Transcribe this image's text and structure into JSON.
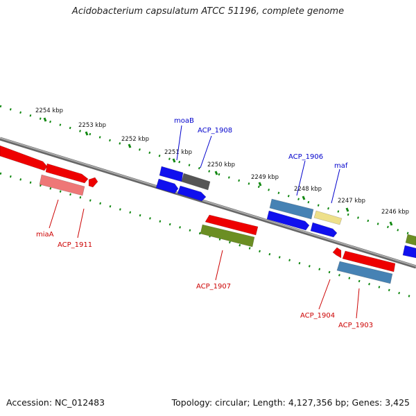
{
  "title": "Acidobacterium capsulatum ATCC 51196, complete genome",
  "footer": {
    "accession": "Accession: NC_012483",
    "topology": "Topology: circular; Length: 4,127,356 bp; Genes: 3,425"
  },
  "ticks": [
    {
      "label": "2254 kbp"
    },
    {
      "label": "2253 kbp"
    },
    {
      "label": "2252 kbp"
    },
    {
      "label": "2251 kbp"
    },
    {
      "label": "2250 kbp"
    },
    {
      "label": "2249 kbp"
    },
    {
      "label": "2248 kbp"
    },
    {
      "label": "2247 kbp"
    },
    {
      "label": "2246 kbp"
    }
  ],
  "genes": [
    {
      "id": "g-left-1",
      "label": "",
      "strand": "forward",
      "color": "#ee0000"
    },
    {
      "id": "g-left-2",
      "label": "",
      "strand": "forward",
      "color": "#ee0000"
    },
    {
      "id": "g-left-3",
      "label": "",
      "strand": "forward",
      "color": "#ee0000"
    },
    {
      "id": "g-miaA",
      "label": "miaA",
      "strand": "reverse",
      "color": "#ee7777"
    },
    {
      "id": "g-ACP_1911",
      "label": "ACP_1911",
      "strand": "reverse",
      "color": "#ee7777"
    },
    {
      "id": "g-moaB",
      "label": "moaB",
      "strand": "forward",
      "color": "#1010ee"
    },
    {
      "id": "g-ACP_1908",
      "label": "ACP_1908",
      "strand": "forward",
      "color": "#555555"
    },
    {
      "id": "g-blue-2",
      "label": "",
      "strand": "forward",
      "color": "#1010ee"
    },
    {
      "id": "g-blue-3",
      "label": "",
      "strand": "forward",
      "color": "#1010ee"
    },
    {
      "id": "g-ACP_1907",
      "label": "ACP_1907",
      "strand": "reverse",
      "color": "#ee0000"
    },
    {
      "id": "g-ACP_1907b",
      "label": "",
      "strand": "reverse",
      "color": "#6b8e23"
    },
    {
      "id": "g-ACP_1906",
      "label": "ACP_1906",
      "strand": "forward",
      "color": "#4682b4"
    },
    {
      "id": "g-blue-4",
      "label": "",
      "strand": "forward",
      "color": "#1010ee"
    },
    {
      "id": "g-maf",
      "label": "maf",
      "strand": "forward",
      "color": "#eee08a"
    },
    {
      "id": "g-blue-5",
      "label": "",
      "strand": "forward",
      "color": "#1010ee"
    },
    {
      "id": "g-ACP_1904",
      "label": "ACP_1904",
      "strand": "reverse",
      "color": "#ee0000"
    },
    {
      "id": "g-ACP_1903",
      "label": "ACP_1903",
      "strand": "reverse",
      "color": "#ee0000"
    },
    {
      "id": "g-steel-3",
      "label": "",
      "strand": "reverse",
      "color": "#4682b4"
    },
    {
      "id": "g-right-olive",
      "label": "",
      "strand": "forward",
      "color": "#6b8e23"
    },
    {
      "id": "g-right-blue",
      "label": "",
      "strand": "forward",
      "color": "#1010ee"
    }
  ],
  "colors": {
    "label_forward": "#0000cc",
    "label_reverse": "#cc0000",
    "tick_dots": "#118811",
    "backbone": "#888888"
  }
}
